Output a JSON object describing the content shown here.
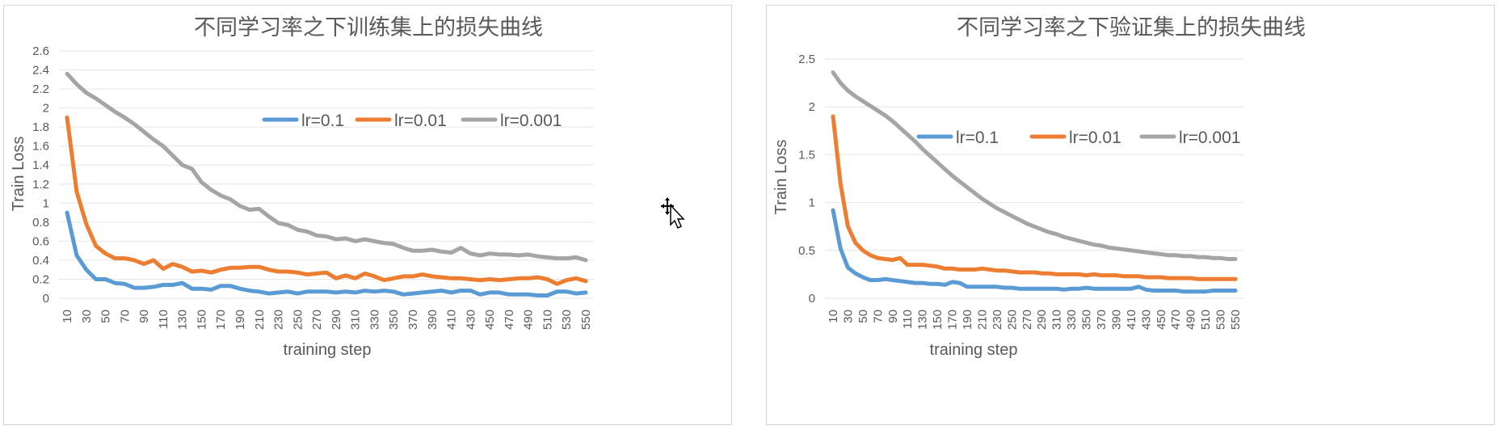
{
  "chart_data": [
    {
      "type": "line",
      "title": "不同学习率之下训练集上的损失曲线",
      "xlabel": "training   step",
      "ylabel": "Train  Loss",
      "ylim": [
        0,
        2.6
      ],
      "ytick_labels": [
        "0",
        "0.2",
        "0.4",
        "0.6",
        "0.8",
        "1",
        "1.2",
        "1.4",
        "1.6",
        "1.8",
        "2",
        "2.2",
        "2.4",
        "2.6"
      ],
      "x": [
        10,
        20,
        30,
        40,
        50,
        60,
        70,
        80,
        90,
        100,
        110,
        120,
        130,
        140,
        150,
        160,
        170,
        180,
        190,
        200,
        210,
        220,
        230,
        240,
        250,
        260,
        270,
        280,
        290,
        300,
        310,
        320,
        330,
        340,
        350,
        360,
        370,
        380,
        390,
        400,
        410,
        420,
        430,
        440,
        450,
        460,
        470,
        480,
        490,
        500,
        510,
        520,
        530,
        540,
        550
      ],
      "xtick_labels": [
        "10",
        "30",
        "50",
        "70",
        "90",
        "110",
        "130",
        "150",
        "170",
        "190",
        "210",
        "230",
        "250",
        "270",
        "290",
        "310",
        "330",
        "350",
        "370",
        "390",
        "410",
        "430",
        "450",
        "470",
        "490",
        "510",
        "530",
        "550"
      ],
      "grid": true,
      "legend": "top-right",
      "series": [
        {
          "name": "lr=0.1",
          "color": "#5b9bd5",
          "values": [
            0.9,
            0.45,
            0.3,
            0.2,
            0.2,
            0.16,
            0.15,
            0.11,
            0.11,
            0.12,
            0.14,
            0.14,
            0.16,
            0.1,
            0.1,
            0.09,
            0.13,
            0.13,
            0.1,
            0.08,
            0.07,
            0.05,
            0.06,
            0.07,
            0.05,
            0.07,
            0.07,
            0.07,
            0.06,
            0.07,
            0.06,
            0.08,
            0.07,
            0.08,
            0.07,
            0.04,
            0.05,
            0.06,
            0.07,
            0.08,
            0.06,
            0.08,
            0.08,
            0.04,
            0.06,
            0.06,
            0.04,
            0.04,
            0.04,
            0.03,
            0.03,
            0.07,
            0.07,
            0.05,
            0.06
          ]
        },
        {
          "name": "lr=0.01",
          "color": "#ed7d31",
          "values": [
            1.9,
            1.12,
            0.78,
            0.55,
            0.47,
            0.42,
            0.42,
            0.4,
            0.36,
            0.4,
            0.31,
            0.36,
            0.33,
            0.28,
            0.29,
            0.27,
            0.3,
            0.32,
            0.32,
            0.33,
            0.33,
            0.3,
            0.28,
            0.28,
            0.27,
            0.25,
            0.26,
            0.27,
            0.21,
            0.24,
            0.21,
            0.26,
            0.23,
            0.19,
            0.21,
            0.23,
            0.23,
            0.25,
            0.23,
            0.22,
            0.21,
            0.21,
            0.2,
            0.19,
            0.2,
            0.19,
            0.2,
            0.21,
            0.21,
            0.22,
            0.2,
            0.15,
            0.19,
            0.21,
            0.18
          ]
        },
        {
          "name": "lr=0.001",
          "color": "#a5a5a5",
          "values": [
            2.36,
            2.25,
            2.16,
            2.1,
            2.03,
            1.96,
            1.9,
            1.83,
            1.75,
            1.67,
            1.6,
            1.5,
            1.4,
            1.36,
            1.22,
            1.14,
            1.08,
            1.04,
            0.97,
            0.93,
            0.94,
            0.86,
            0.79,
            0.77,
            0.72,
            0.7,
            0.66,
            0.65,
            0.62,
            0.63,
            0.6,
            0.62,
            0.6,
            0.58,
            0.57,
            0.53,
            0.5,
            0.5,
            0.51,
            0.49,
            0.48,
            0.53,
            0.47,
            0.45,
            0.47,
            0.46,
            0.46,
            0.45,
            0.46,
            0.44,
            0.43,
            0.42,
            0.42,
            0.43,
            0.4
          ]
        }
      ]
    },
    {
      "type": "line",
      "title": "不同学习率之下验证集上的损失曲线",
      "xlabel": "training   step",
      "ylabel": "Train  Loss",
      "ylim": [
        0,
        2.5
      ],
      "ytick_labels": [
        "0",
        "0.5",
        "1",
        "1.5",
        "2",
        "2.5"
      ],
      "x": [
        10,
        20,
        30,
        40,
        50,
        60,
        70,
        80,
        90,
        100,
        110,
        120,
        130,
        140,
        150,
        160,
        170,
        180,
        190,
        200,
        210,
        220,
        230,
        240,
        250,
        260,
        270,
        280,
        290,
        300,
        310,
        320,
        330,
        340,
        350,
        360,
        370,
        380,
        390,
        400,
        410,
        420,
        430,
        440,
        450,
        460,
        470,
        480,
        490,
        500,
        510,
        520,
        530,
        540,
        550
      ],
      "xtick_labels": [
        "10",
        "30",
        "50",
        "70",
        "90",
        "110",
        "130",
        "150",
        "170",
        "190",
        "210",
        "230",
        "250",
        "270",
        "290",
        "310",
        "330",
        "350",
        "370",
        "390",
        "410",
        "430",
        "450",
        "470",
        "490",
        "510",
        "530",
        "550"
      ],
      "grid": true,
      "legend": "top-right",
      "series": [
        {
          "name": "lr=0.1",
          "color": "#5b9bd5",
          "values": [
            0.92,
            0.52,
            0.32,
            0.26,
            0.22,
            0.19,
            0.19,
            0.2,
            0.19,
            0.18,
            0.17,
            0.16,
            0.16,
            0.15,
            0.15,
            0.14,
            0.17,
            0.16,
            0.12,
            0.12,
            0.12,
            0.12,
            0.12,
            0.11,
            0.11,
            0.1,
            0.1,
            0.1,
            0.1,
            0.1,
            0.1,
            0.09,
            0.1,
            0.1,
            0.11,
            0.1,
            0.1,
            0.1,
            0.1,
            0.1,
            0.1,
            0.12,
            0.09,
            0.08,
            0.08,
            0.08,
            0.08,
            0.07,
            0.07,
            0.07,
            0.07,
            0.08,
            0.08,
            0.08,
            0.08
          ]
        },
        {
          "name": "lr=0.01",
          "color": "#ed7d31",
          "values": [
            1.9,
            1.2,
            0.75,
            0.58,
            0.5,
            0.45,
            0.42,
            0.41,
            0.4,
            0.42,
            0.35,
            0.35,
            0.35,
            0.34,
            0.33,
            0.31,
            0.31,
            0.3,
            0.3,
            0.3,
            0.31,
            0.3,
            0.29,
            0.29,
            0.28,
            0.27,
            0.27,
            0.27,
            0.26,
            0.26,
            0.25,
            0.25,
            0.25,
            0.25,
            0.24,
            0.25,
            0.24,
            0.24,
            0.24,
            0.23,
            0.23,
            0.23,
            0.22,
            0.22,
            0.22,
            0.21,
            0.21,
            0.21,
            0.21,
            0.2,
            0.2,
            0.2,
            0.2,
            0.2,
            0.2
          ]
        },
        {
          "name": "lr=0.001",
          "color": "#a5a5a5",
          "values": [
            2.36,
            2.25,
            2.17,
            2.11,
            2.06,
            2.01,
            1.96,
            1.91,
            1.85,
            1.78,
            1.71,
            1.64,
            1.56,
            1.49,
            1.42,
            1.35,
            1.28,
            1.22,
            1.16,
            1.1,
            1.04,
            0.99,
            0.94,
            0.9,
            0.86,
            0.82,
            0.78,
            0.75,
            0.72,
            0.69,
            0.67,
            0.64,
            0.62,
            0.6,
            0.58,
            0.56,
            0.55,
            0.53,
            0.52,
            0.51,
            0.5,
            0.49,
            0.48,
            0.47,
            0.46,
            0.45,
            0.45,
            0.44,
            0.44,
            0.43,
            0.43,
            0.42,
            0.42,
            0.41,
            0.41
          ]
        }
      ]
    }
  ]
}
